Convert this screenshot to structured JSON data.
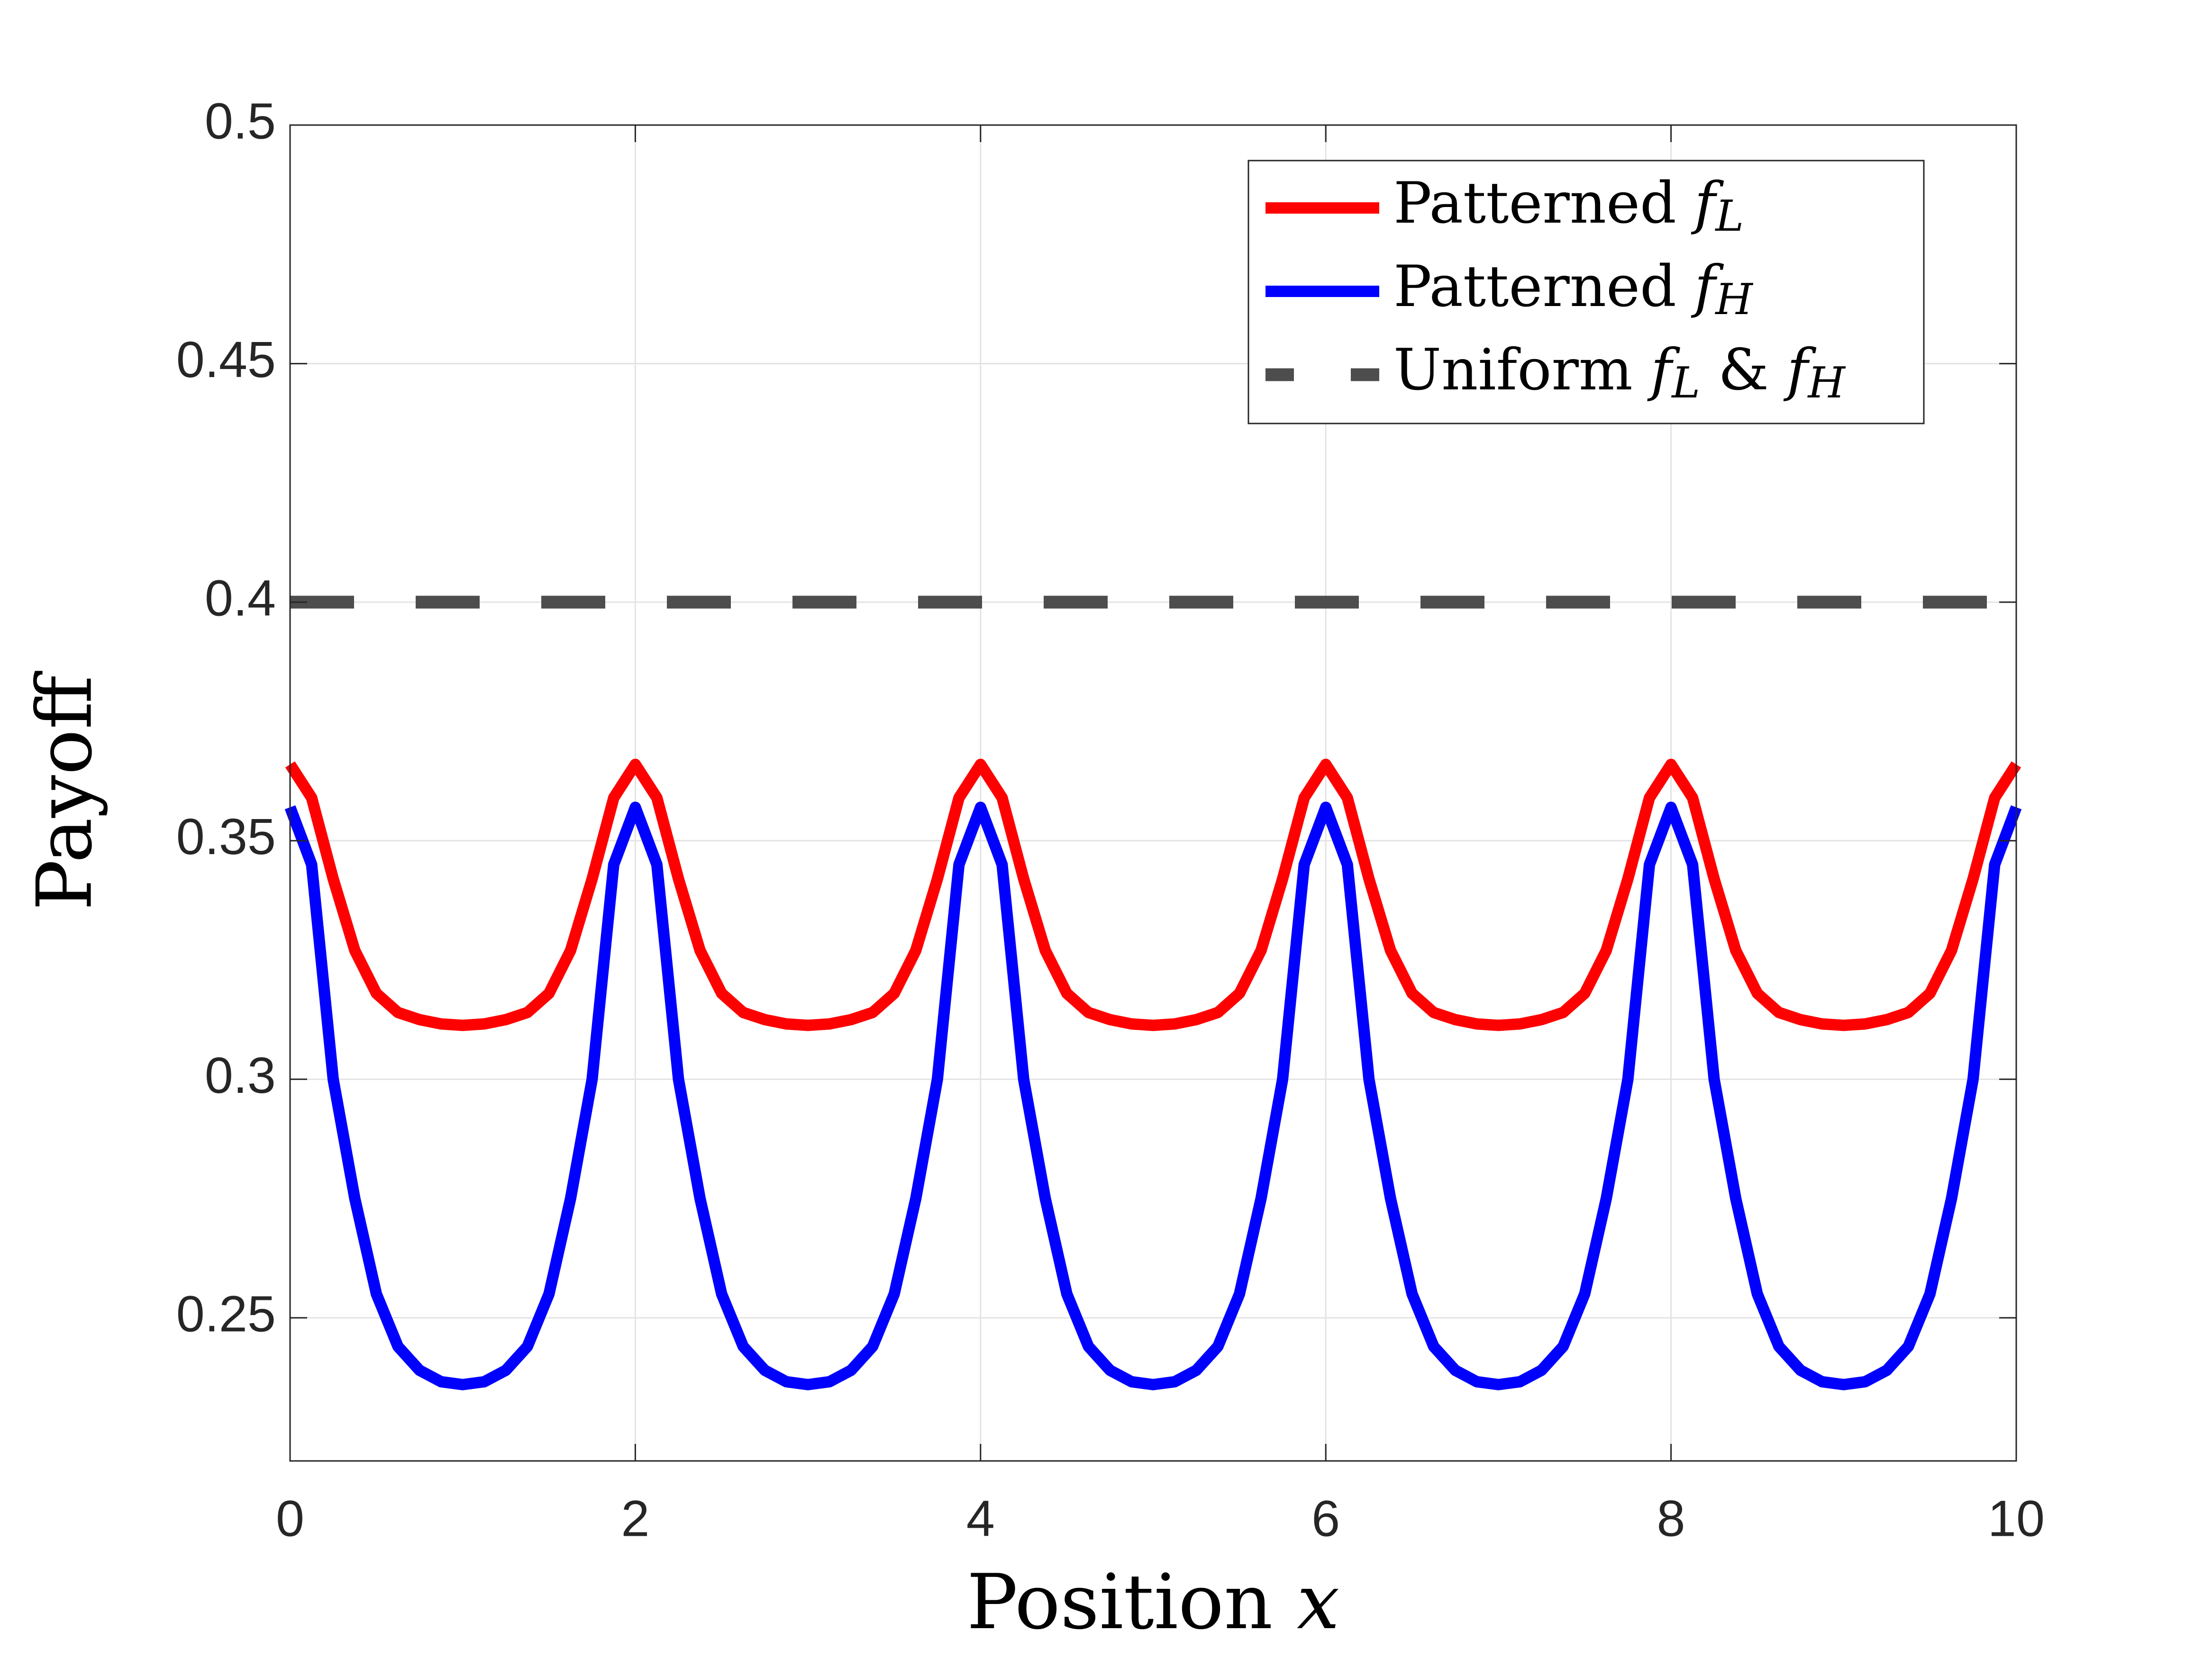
{
  "chart_data": {
    "type": "line",
    "xlabel": "Position x",
    "ylabel": "Payoff",
    "x": [
      0,
      0.125,
      0.25,
      0.375,
      0.5,
      0.625,
      0.75,
      0.875,
      1,
      1.125,
      1.25,
      1.375,
      1.5,
      1.625,
      1.75,
      1.875,
      2,
      2.125,
      2.25,
      2.375,
      2.5,
      2.625,
      2.75,
      2.875,
      3,
      3.125,
      3.25,
      3.375,
      3.5,
      3.625,
      3.75,
      3.875,
      4,
      4.125,
      4.25,
      4.375,
      4.5,
      4.625,
      4.75,
      4.875,
      5,
      5.125,
      5.25,
      5.375,
      5.5,
      5.625,
      5.75,
      5.875,
      6,
      6.125,
      6.25,
      6.375,
      6.5,
      6.625,
      6.75,
      6.875,
      7,
      7.125,
      7.25,
      7.375,
      7.5,
      7.625,
      7.75,
      7.875,
      8,
      8.125,
      8.25,
      8.375,
      8.5,
      8.625,
      8.75,
      8.875,
      9,
      9.125,
      9.25,
      9.375,
      9.5,
      9.625,
      9.75,
      9.875,
      10
    ],
    "series": [
      {
        "name": "Patterned fL",
        "color": "#ff0000",
        "values": [
          0.366,
          0.359,
          0.342,
          0.327,
          0.318,
          0.314,
          0.3125,
          0.3116,
          0.3113,
          0.3116,
          0.3125,
          0.314,
          0.318,
          0.327,
          0.342,
          0.359,
          0.366,
          0.359,
          0.342,
          0.327,
          0.318,
          0.314,
          0.3125,
          0.3116,
          0.3113,
          0.3116,
          0.3125,
          0.314,
          0.318,
          0.327,
          0.342,
          0.359,
          0.366,
          0.359,
          0.342,
          0.327,
          0.318,
          0.314,
          0.3125,
          0.3116,
          0.3113,
          0.3116,
          0.3125,
          0.314,
          0.318,
          0.327,
          0.342,
          0.359,
          0.366,
          0.359,
          0.342,
          0.327,
          0.318,
          0.314,
          0.3125,
          0.3116,
          0.3113,
          0.3116,
          0.3125,
          0.314,
          0.318,
          0.327,
          0.342,
          0.359,
          0.366,
          0.359,
          0.342,
          0.327,
          0.318,
          0.314,
          0.3125,
          0.3116,
          0.3113,
          0.3116,
          0.3125,
          0.314,
          0.318,
          0.327,
          0.342,
          0.359,
          0.366
        ]
      },
      {
        "name": "Patterned fH",
        "color": "#0000ff",
        "values": [
          0.357,
          0.345,
          0.3,
          0.275,
          0.255,
          0.244,
          0.239,
          0.2366,
          0.236,
          0.2366,
          0.239,
          0.244,
          0.255,
          0.275,
          0.3,
          0.345,
          0.357,
          0.345,
          0.3,
          0.275,
          0.255,
          0.244,
          0.239,
          0.2366,
          0.236,
          0.2366,
          0.239,
          0.244,
          0.255,
          0.275,
          0.3,
          0.345,
          0.357,
          0.345,
          0.3,
          0.275,
          0.255,
          0.244,
          0.239,
          0.2366,
          0.236,
          0.2366,
          0.239,
          0.244,
          0.255,
          0.275,
          0.3,
          0.345,
          0.357,
          0.345,
          0.3,
          0.275,
          0.255,
          0.244,
          0.239,
          0.2366,
          0.236,
          0.2366,
          0.239,
          0.244,
          0.255,
          0.275,
          0.3,
          0.345,
          0.357,
          0.345,
          0.3,
          0.275,
          0.255,
          0.244,
          0.239,
          0.2366,
          0.236,
          0.2366,
          0.239,
          0.244,
          0.255,
          0.275,
          0.3,
          0.345,
          0.357
        ]
      },
      {
        "name": "Uniform fL & fH",
        "color": "#4d4d4d",
        "dashed": true,
        "x": [
          0,
          10
        ],
        "values": [
          0.4,
          0.4
        ]
      }
    ],
    "xlim": [
      0,
      10
    ],
    "xticks": [
      0,
      2,
      4,
      6,
      8,
      10
    ],
    "ylim": [
      0.22,
      0.5
    ],
    "yticks": [
      0.25,
      0.3,
      0.35,
      0.4,
      0.45,
      0.5
    ],
    "grid": true,
    "legend": "upper right"
  }
}
